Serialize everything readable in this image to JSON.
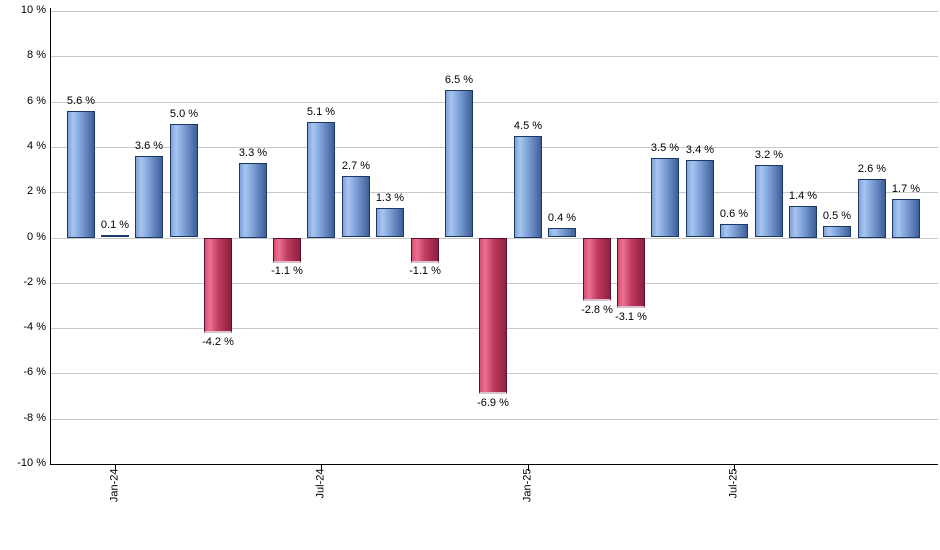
{
  "chart_data": {
    "type": "bar",
    "title": "",
    "xlabel": "",
    "ylabel": "",
    "unit": "%",
    "ylim": [
      -10,
      10
    ],
    "grid": true,
    "legend": null,
    "values": [
      5.6,
      0.1,
      3.6,
      5.0,
      -4.2,
      3.3,
      -1.1,
      5.1,
      2.7,
      1.3,
      -1.1,
      6.5,
      -6.9,
      4.5,
      0.4,
      -2.8,
      -3.1,
      3.5,
      3.4,
      0.6,
      3.2,
      1.4,
      0.5,
      2.6,
      1.7
    ],
    "bar_labels": [
      "5.6 %",
      "0.1 %",
      "3.6 %",
      "5.0 %",
      "-4.2 %",
      "3.3 %",
      "-1.1 %",
      "5.1 %",
      "2.7 %",
      "1.3 %",
      "-1.1 %",
      "6.5 %",
      "-6.9 %",
      "4.5 %",
      "0.4 %",
      "-2.8 %",
      "-3.1 %",
      "3.5 %",
      "3.4 %",
      "0.6 %",
      "3.2 %",
      "1.4 %",
      "0.5 %",
      "2.6 %",
      "1.7 %"
    ],
    "x_ticks": [
      {
        "label": "Jan-24",
        "bar_index": 1
      },
      {
        "label": "Jul-24",
        "bar_index": 7
      },
      {
        "label": "Jan-25",
        "bar_index": 13
      },
      {
        "label": "Jul-25",
        "bar_index": 19
      }
    ],
    "y_ticks": [
      {
        "label": "10 %",
        "value": 10
      },
      {
        "label": "8 %",
        "value": 8
      },
      {
        "label": "6 %",
        "value": 6
      },
      {
        "label": "4 %",
        "value": 4
      },
      {
        "label": "2 %",
        "value": 2
      },
      {
        "label": "0 %",
        "value": 0
      },
      {
        "label": "-2 %",
        "value": -2
      },
      {
        "label": "-4 %",
        "value": -4
      },
      {
        "label": "-6 %",
        "value": -6
      },
      {
        "label": "-8 %",
        "value": -8
      },
      {
        "label": "-10 %",
        "value": -10
      }
    ],
    "colors": {
      "positive_fill_light": "#a9c5ef",
      "positive_fill_dark": "#3e5e97",
      "positive_border": "#1b3866",
      "negative_fill_light": "#ec7390",
      "negative_fill_dark": "#8c2040",
      "negative_border": "#5c1029",
      "gridline": "#c9c9c9",
      "axis": "#000000",
      "label_text": "#000000",
      "background": "#ffffff"
    }
  }
}
